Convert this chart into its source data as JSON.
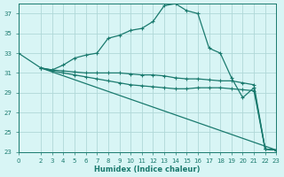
{
  "xlabel": "Humidex (Indice chaleur)",
  "bg_color": "#d8f5f5",
  "grid_color": "#b0d8d8",
  "line_color": "#1a7a6e",
  "xlim": [
    0,
    23
  ],
  "ylim": [
    23,
    38
  ],
  "yticks": [
    23,
    25,
    27,
    29,
    31,
    33,
    35,
    37
  ],
  "xticks": [
    0,
    2,
    3,
    4,
    5,
    6,
    7,
    8,
    9,
    10,
    11,
    12,
    13,
    14,
    15,
    16,
    17,
    18,
    19,
    20,
    21,
    22,
    23
  ],
  "series": [
    {
      "x": [
        0,
        2,
        3,
        4,
        5,
        6,
        7,
        8,
        9,
        10,
        11,
        12,
        13,
        14,
        15,
        16,
        17,
        18,
        19,
        20,
        21,
        22,
        23
      ],
      "y": [
        33,
        31.5,
        31.3,
        31.8,
        32.5,
        32.8,
        33.0,
        34.5,
        34.8,
        35.3,
        35.5,
        36.2,
        37.8,
        38.0,
        37.3,
        37.0,
        33.5,
        33.0,
        30.5,
        28.5,
        29.5,
        23.3,
        23.2
      ]
    },
    {
      "x": [
        2,
        3,
        4,
        5,
        6,
        7,
        8,
        9,
        10,
        11,
        12,
        13,
        14,
        15,
        16,
        17,
        18,
        19,
        20,
        21,
        22,
        23
      ],
      "y": [
        31.5,
        31.3,
        31.2,
        31.1,
        31.0,
        31.0,
        31.0,
        31.0,
        30.9,
        30.8,
        30.8,
        30.7,
        30.5,
        30.4,
        30.4,
        30.3,
        30.2,
        30.2,
        30.0,
        29.8,
        23.3,
        23.2
      ]
    },
    {
      "x": [
        2,
        3,
        4,
        5,
        6,
        7,
        8,
        9,
        10,
        11,
        12,
        13,
        14,
        15,
        16,
        17,
        18,
        19,
        20,
        21,
        22,
        23
      ],
      "y": [
        31.5,
        31.2,
        31.0,
        30.8,
        30.6,
        30.4,
        30.2,
        30.0,
        29.8,
        29.7,
        29.6,
        29.5,
        29.4,
        29.4,
        29.5,
        29.5,
        29.5,
        29.4,
        29.3,
        29.2,
        23.3,
        23.2
      ]
    },
    {
      "x": [
        2,
        23
      ],
      "y": [
        31.5,
        23.2
      ]
    }
  ]
}
